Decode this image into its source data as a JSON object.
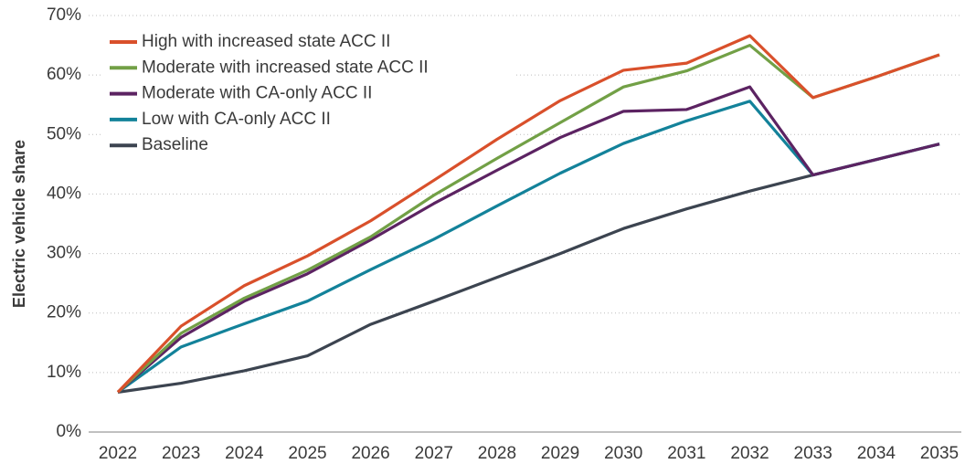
{
  "chart_data": {
    "type": "line",
    "y_label": "Electric vehicle share",
    "categories": [
      "2022",
      "2023",
      "2024",
      "2025",
      "2026",
      "2027",
      "2028",
      "2029",
      "2030",
      "2031",
      "2032",
      "2033",
      "2034",
      "2035"
    ],
    "series": [
      {
        "name": "High with increased state ACC II",
        "color": "#d9502b",
        "values": [
          6.7,
          17.8,
          24.6,
          29.6,
          35.5,
          42.3,
          49.2,
          55.7,
          60.8,
          62.0,
          66.6,
          56.2,
          59.7,
          63.4
        ]
      },
      {
        "name": "Moderate with increased state ACC II",
        "color": "#72a046",
        "values": [
          6.7,
          16.6,
          22.5,
          27.2,
          32.8,
          39.8,
          46.0,
          52.0,
          58.0,
          60.7,
          65.0,
          56.2,
          59.7,
          63.4
        ]
      },
      {
        "name": "Moderate with CA-only ACC II",
        "color": "#5c2362",
        "values": [
          6.7,
          15.9,
          22.0,
          26.6,
          32.3,
          38.4,
          44.0,
          49.5,
          53.9,
          54.2,
          58.0,
          43.2,
          45.8,
          48.4
        ]
      },
      {
        "name": "Low with CA-only ACC II",
        "color": "#13829a",
        "values": [
          6.7,
          14.3,
          18.2,
          22.0,
          27.3,
          32.4,
          38.0,
          43.5,
          48.5,
          52.3,
          55.6,
          43.2,
          45.8,
          48.4
        ]
      },
      {
        "name": "Baseline",
        "color": "#3c4450",
        "values": [
          6.7,
          8.2,
          10.3,
          12.8,
          18.1,
          22.0,
          26.0,
          30.0,
          34.2,
          37.5,
          40.5,
          43.2,
          45.8,
          48.4
        ]
      }
    ],
    "ylim": [
      0,
      70
    ],
    "yticks": [
      {
        "value": 0,
        "label": "0%"
      },
      {
        "value": 10,
        "label": "10%"
      },
      {
        "value": 20,
        "label": "20%"
      },
      {
        "value": 30,
        "label": "30%"
      },
      {
        "value": 40,
        "label": "40%"
      },
      {
        "value": 50,
        "label": "50%"
      },
      {
        "value": 60,
        "label": "60%"
      },
      {
        "value": 70,
        "label": "70%"
      }
    ],
    "grid": true,
    "legend": "upper left"
  }
}
